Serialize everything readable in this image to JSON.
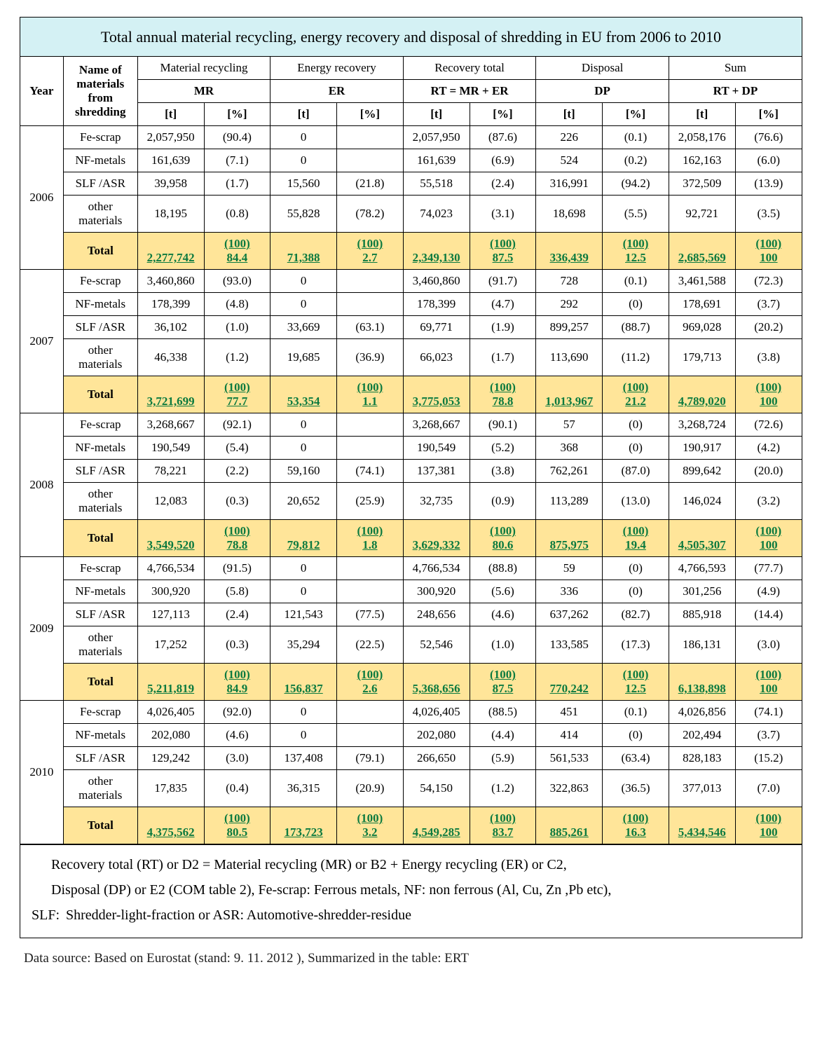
{
  "title": "Total annual material recycling, energy recovery and disposal of shredding\n in EU from 2006 to 2010",
  "colors": {
    "title_bg": "#d4f1f4",
    "total_row_bg": "#ffe599",
    "total_value_color": "#0b7a3f",
    "border": "#000000",
    "background": "#ffffff"
  },
  "typography": {
    "body_font": "Georgia, Times New Roman, serif",
    "title_fontsize": 22,
    "cell_fontsize": 17,
    "footnote_fontsize": 20,
    "source_fontsize": 19
  },
  "header": {
    "year": "Year",
    "materials": "Name of materials from shredding",
    "groups": [
      {
        "top": "Material recycling",
        "mid": "MR"
      },
      {
        "top": "Energy recovery",
        "mid": "ER"
      },
      {
        "top": "Recovery total",
        "mid": "RT = MR + ER"
      },
      {
        "top": "Disposal",
        "mid": "DP"
      },
      {
        "top": "Sum",
        "mid": "RT + DP"
      }
    ],
    "unit_t": "[t]",
    "unit_pct": "[%]"
  },
  "material_labels": [
    "Fe-scrap",
    "NF-metals",
    "SLF /ASR",
    "other materials",
    "Total"
  ],
  "years": [
    {
      "year": "2006",
      "rows": [
        {
          "mr_t": "2,057,950",
          "mr_p": "(90.4)",
          "er_t": "0",
          "er_p": "",
          "rt_t": "2,057,950",
          "rt_p": "(87.6)",
          "dp_t": "226",
          "dp_p": "(0.1)",
          "sum_t": "2,058,176",
          "sum_p": "(76.6)"
        },
        {
          "mr_t": "161,639",
          "mr_p": "(7.1)",
          "er_t": "0",
          "er_p": "",
          "rt_t": "161,639",
          "rt_p": "(6.9)",
          "dp_t": "524",
          "dp_p": "(0.2)",
          "sum_t": "162,163",
          "sum_p": "(6.0)"
        },
        {
          "mr_t": "39,958",
          "mr_p": "(1.7)",
          "er_t": "15,560",
          "er_p": "(21.8)",
          "rt_t": "55,518",
          "rt_p": "(2.4)",
          "dp_t": "316,991",
          "dp_p": "(94.2)",
          "sum_t": "372,509",
          "sum_p": "(13.9)"
        },
        {
          "mr_t": "18,195",
          "mr_p": "(0.8)",
          "er_t": "55,828",
          "er_p": "(78.2)",
          "rt_t": "74,023",
          "rt_p": "(3.1)",
          "dp_t": "18,698",
          "dp_p": "(5.5)",
          "sum_t": "92,721",
          "sum_p": "(3.5)"
        }
      ],
      "total": {
        "mr_t": "2,277,742",
        "mr_p_top": "(100)",
        "mr_p_bot": "84.4",
        "er_t": "71,388",
        "er_p_top": "(100)",
        "er_p_bot": "2.7",
        "rt_t": "2,349,130",
        "rt_p_top": "(100)",
        "rt_p_bot": "87.5",
        "dp_t": "336,439",
        "dp_p_top": "(100)",
        "dp_p_bot": "12.5",
        "sum_t": "2,685,569",
        "sum_p_top": "(100)",
        "sum_p_bot": "100"
      }
    },
    {
      "year": "2007",
      "rows": [
        {
          "mr_t": "3,460,860",
          "mr_p": "(93.0)",
          "er_t": "0",
          "er_p": "",
          "rt_t": "3,460,860",
          "rt_p": "(91.7)",
          "dp_t": "728",
          "dp_p": "(0.1)",
          "sum_t": "3,461,588",
          "sum_p": "(72.3)"
        },
        {
          "mr_t": "178,399",
          "mr_p": "(4.8)",
          "er_t": "0",
          "er_p": "",
          "rt_t": "178,399",
          "rt_p": "(4.7)",
          "dp_t": "292",
          "dp_p": "(0)",
          "sum_t": "178,691",
          "sum_p": "(3.7)"
        },
        {
          "mr_t": "36,102",
          "mr_p": "(1.0)",
          "er_t": "33,669",
          "er_p": "(63.1)",
          "rt_t": "69,771",
          "rt_p": "(1.9)",
          "dp_t": "899,257",
          "dp_p": "(88.7)",
          "sum_t": "969,028",
          "sum_p": "(20.2)"
        },
        {
          "mr_t": "46,338",
          "mr_p": "(1.2)",
          "er_t": "19,685",
          "er_p": "(36.9)",
          "rt_t": "66,023",
          "rt_p": "(1.7)",
          "dp_t": "113,690",
          "dp_p": "(11.2)",
          "sum_t": "179,713",
          "sum_p": "(3.8)"
        }
      ],
      "total": {
        "mr_t": "3,721,699",
        "mr_p_top": "(100)",
        "mr_p_bot": "77.7",
        "er_t": "53,354",
        "er_p_top": "(100)",
        "er_p_bot": "1.1",
        "rt_t": "3,775,053",
        "rt_p_top": "(100)",
        "rt_p_bot": "78.8",
        "dp_t": "1,013,967",
        "dp_p_top": "(100)",
        "dp_p_bot": "21.2",
        "sum_t": "4,789,020",
        "sum_p_top": "(100)",
        "sum_p_bot": "100"
      }
    },
    {
      "year": "2008",
      "rows": [
        {
          "mr_t": "3,268,667",
          "mr_p": "(92.1)",
          "er_t": "0",
          "er_p": "",
          "rt_t": "3,268,667",
          "rt_p": "(90.1)",
          "dp_t": "57",
          "dp_p": "(0)",
          "sum_t": "3,268,724",
          "sum_p": "(72.6)"
        },
        {
          "mr_t": "190,549",
          "mr_p": "(5.4)",
          "er_t": "0",
          "er_p": "",
          "rt_t": "190,549",
          "rt_p": "(5.2)",
          "dp_t": "368",
          "dp_p": "(0)",
          "sum_t": "190,917",
          "sum_p": "(4.2)"
        },
        {
          "mr_t": "78,221",
          "mr_p": "(2.2)",
          "er_t": "59,160",
          "er_p": "(74.1)",
          "rt_t": "137,381",
          "rt_p": "(3.8)",
          "dp_t": "762,261",
          "dp_p": "(87.0)",
          "sum_t": "899,642",
          "sum_p": "(20.0)"
        },
        {
          "mr_t": "12,083",
          "mr_p": "(0.3)",
          "er_t": "20,652",
          "er_p": "(25.9)",
          "rt_t": "32,735",
          "rt_p": "(0.9)",
          "dp_t": "113,289",
          "dp_p": "(13.0)",
          "sum_t": "146,024",
          "sum_p": "(3.2)"
        }
      ],
      "total": {
        "mr_t": "3,549,520",
        "mr_p_top": "(100)",
        "mr_p_bot": "78.8",
        "er_t": "79,812",
        "er_p_top": "(100)",
        "er_p_bot": "1.8",
        "rt_t": "3,629,332",
        "rt_p_top": "(100)",
        "rt_p_bot": "80.6",
        "dp_t": "875,975",
        "dp_p_top": "(100)",
        "dp_p_bot": "19.4",
        "sum_t": "4,505,307",
        "sum_p_top": "(100)",
        "sum_p_bot": "100"
      }
    },
    {
      "year": "2009",
      "rows": [
        {
          "mr_t": "4,766,534",
          "mr_p": "(91.5)",
          "er_t": "0",
          "er_p": "",
          "rt_t": "4,766,534",
          "rt_p": "(88.8)",
          "dp_t": "59",
          "dp_p": "(0)",
          "sum_t": "4,766,593",
          "sum_p": "(77.7)"
        },
        {
          "mr_t": "300,920",
          "mr_p": "(5.8)",
          "er_t": "0",
          "er_p": "",
          "rt_t": "300,920",
          "rt_p": "(5.6)",
          "dp_t": "336",
          "dp_p": "(0)",
          "sum_t": "301,256",
          "sum_p": "(4.9)"
        },
        {
          "mr_t": "127,113",
          "mr_p": "(2.4)",
          "er_t": "121,543",
          "er_p": "(77.5)",
          "rt_t": "248,656",
          "rt_p": "(4.6)",
          "dp_t": "637,262",
          "dp_p": "(82.7)",
          "sum_t": "885,918",
          "sum_p": "(14.4)"
        },
        {
          "mr_t": "17,252",
          "mr_p": "(0.3)",
          "er_t": "35,294",
          "er_p": "(22.5)",
          "rt_t": "52,546",
          "rt_p": "(1.0)",
          "dp_t": "133,585",
          "dp_p": "(17.3)",
          "sum_t": "186,131",
          "sum_p": "(3.0)"
        }
      ],
      "total": {
        "mr_t": "5,211,819",
        "mr_p_top": "(100)",
        "mr_p_bot": "84.9",
        "er_t": "156,837",
        "er_p_top": "(100)",
        "er_p_bot": "2.6",
        "rt_t": "5,368,656",
        "rt_p_top": "(100)",
        "rt_p_bot": "87.5",
        "dp_t": "770,242",
        "dp_p_top": "(100)",
        "dp_p_bot": "12.5",
        "sum_t": "6,138,898",
        "sum_p_top": "(100)",
        "sum_p_bot": "100"
      }
    },
    {
      "year": "2010",
      "rows": [
        {
          "mr_t": "4,026,405",
          "mr_p": "(92.0)",
          "er_t": "0",
          "er_p": "",
          "rt_t": "4,026,405",
          "rt_p": "(88.5)",
          "dp_t": "451",
          "dp_p": "(0.1)",
          "sum_t": "4,026,856",
          "sum_p": "(74.1)"
        },
        {
          "mr_t": "202,080",
          "mr_p": "(4.6)",
          "er_t": "0",
          "er_p": "",
          "rt_t": "202,080",
          "rt_p": "(4.4)",
          "dp_t": "414",
          "dp_p": "(0)",
          "sum_t": "202,494",
          "sum_p": "(3.7)"
        },
        {
          "mr_t": "129,242",
          "mr_p": "(3.0)",
          "er_t": "137,408",
          "er_p": "(79.1)",
          "rt_t": "266,650",
          "rt_p": "(5.9)",
          "dp_t": "561,533",
          "dp_p": "(63.4)",
          "sum_t": "828,183",
          "sum_p": "(15.2)"
        },
        {
          "mr_t": "17,835",
          "mr_p": "(0.4)",
          "er_t": "36,315",
          "er_p": "(20.9)",
          "rt_t": "54,150",
          "rt_p": "(1.2)",
          "dp_t": "322,863",
          "dp_p": "(36.5)",
          "sum_t": "377,013",
          "sum_p": "(7.0)"
        }
      ],
      "total": {
        "mr_t": "4,375,562",
        "mr_p_top": "(100)",
        "mr_p_bot": "80.5",
        "er_t": "173,723",
        "er_p_top": "(100)",
        "er_p_bot": "3.2",
        "rt_t": "4,549,285",
        "rt_p_top": "(100)",
        "rt_p_bot": "83.7",
        "dp_t": "885,261",
        "dp_p_top": "(100)",
        "dp_p_bot": "16.3",
        "sum_t": "5,434,546",
        "sum_p_top": "(100)",
        "sum_p_bot": "100"
      }
    }
  ],
  "footnote": {
    "line1": "Recovery total (RT) or D2 = Material recycling (MR) or B2 + Energy recycling (ER) or C2,",
    "line2": "Disposal (DP) or E2 (COM table 2), Fe-scrap: Ferrous metals, NF: non ferrous (Al, Cu, Zn ,Pb etc),",
    "slf_label": "SLF:",
    "line3": "Shredder-light-fraction or ASR: Automotive-shredder-residue"
  },
  "source": "Data source: Based on Eurostat (stand: 9. 11. 2012 ), Summarized in the table: ERT"
}
